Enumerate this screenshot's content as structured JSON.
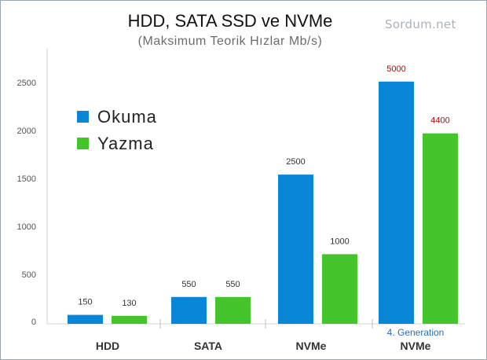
{
  "chart_data": {
    "type": "bar",
    "title": "HDD, SATA SSD ve NVMe",
    "subtitle": "(Maksimum Teorik Hızlar Mb/s)",
    "categories": [
      "HDD",
      "SATA",
      "NVMe",
      "NVMe"
    ],
    "category_sublabels": [
      "",
      "",
      "",
      "4. Generation"
    ],
    "series": [
      {
        "name": "Okuma",
        "color": "#0a86d8",
        "values": [
          150,
          550,
          2500,
          5000
        ]
      },
      {
        "name": "Yazma",
        "color": "#45c42b",
        "values": [
          130,
          550,
          1000,
          4400
        ]
      }
    ],
    "data_labels": [
      [
        "150",
        "550",
        "2500",
        "5000"
      ],
      [
        "130",
        "550",
        "1000",
        "4400"
      ]
    ],
    "highlight_label_color": "#c00000",
    "sublabel_color": "#1f6fc9",
    "y_ticks": [
      0,
      500,
      1000,
      1500,
      2000,
      2500
    ],
    "legend_position": "upper-left",
    "grid": false
  },
  "watermark": "Sordum.net"
}
